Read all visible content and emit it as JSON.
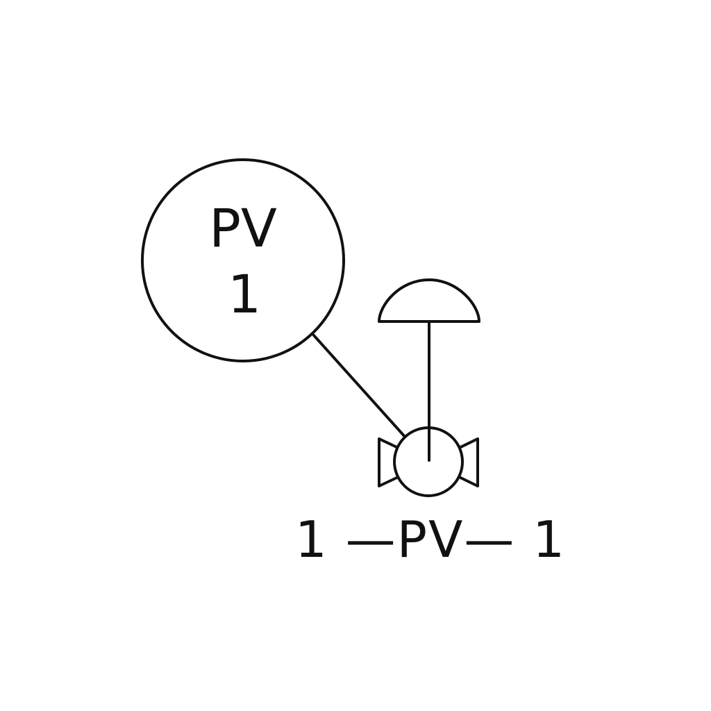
{
  "instrument": {
    "function_letters": "PV",
    "loop_number": "1"
  },
  "valve": {
    "tag": "1 —PV— 1",
    "actuator": "diaphragm",
    "body": "ball"
  },
  "colors": {
    "line": "#111111",
    "background": "#ffffff"
  }
}
